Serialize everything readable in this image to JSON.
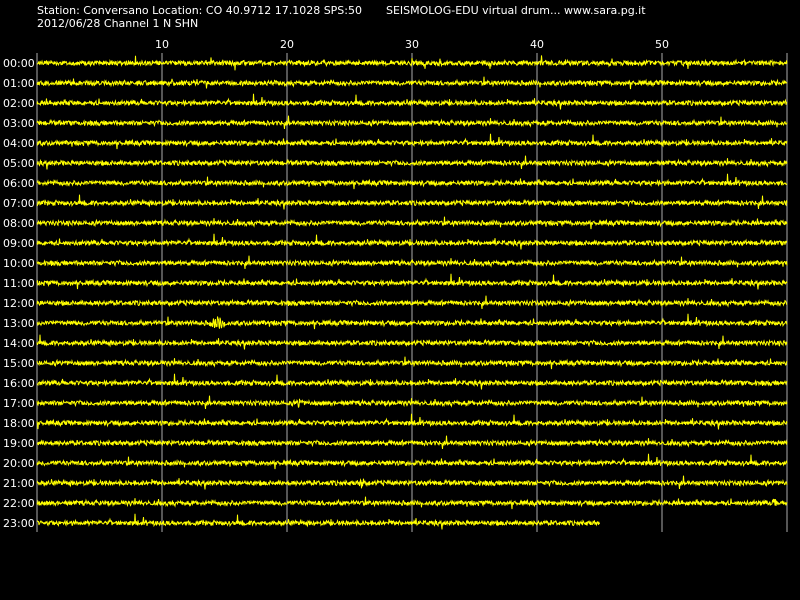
{
  "header": {
    "station_line": "Station: Conversano Location: CO 40.9712 17.1028 SPS:50",
    "date_channel_line": "2012/06/28  Channel 1 N SHN",
    "app_title": "SEISMOLOG-EDU virtual drum... www.sara.pg.it"
  },
  "minute_ticks": [
    "10",
    "20",
    "30",
    "40",
    "50"
  ],
  "hours": [
    "00:00",
    "01:00",
    "02:00",
    "03:00",
    "04:00",
    "05:00",
    "06:00",
    "07:00",
    "08:00",
    "09:00",
    "10:00",
    "11:00",
    "12:00",
    "13:00",
    "14:00",
    "15:00",
    "16:00",
    "17:00",
    "18:00",
    "19:00",
    "20:00",
    "21:00",
    "22:00",
    "23:00"
  ],
  "colors": {
    "background": "#000000",
    "trace": "#ffff00",
    "grid": "#ffffff",
    "text": "#ffffff"
  },
  "chart_data": {
    "type": "line",
    "x_unit": "minutes",
    "x_range": [
      0,
      60
    ],
    "grid": true,
    "rows": 24,
    "last_row_end_minute": 45,
    "events": [
      {
        "hour": 13,
        "minute": 14.5,
        "amplitude": "high"
      },
      {
        "hour": 17,
        "minute": 21,
        "amplitude": "medium"
      },
      {
        "hour": 21,
        "minute": 26,
        "amplitude": "medium"
      },
      {
        "hour": 22,
        "minute": 59,
        "amplitude": "medium"
      }
    ]
  }
}
